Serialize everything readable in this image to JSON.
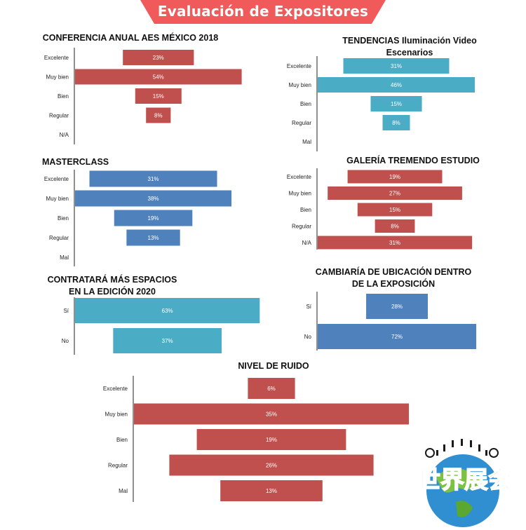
{
  "header": {
    "title": "Evaluación de Expositores",
    "color": "#f05a5b"
  },
  "logo": {
    "text": "世界展会",
    "icon": "globe-logo-icon"
  },
  "chart_data": [
    {
      "type": "bar",
      "title": "CONFERENCIA ANUAL AES  MÉXICO 2018",
      "categories": [
        "Excelente",
        "Muy bien",
        "Bien",
        "Regular",
        "N/A"
      ],
      "values": [
        23,
        54,
        15,
        8,
        0
      ],
      "labels": [
        "23%",
        "54%",
        "15%",
        "8%",
        ""
      ],
      "color": "#c0504d"
    },
    {
      "type": "bar",
      "title": "TENDENCIAS Iluminación Video\nEscenarios",
      "categories": [
        "Excelente",
        "Muy bien",
        "Bien",
        "Regular",
        "Mal"
      ],
      "values": [
        31,
        46,
        15,
        8,
        0
      ],
      "labels": [
        "31%",
        "46%",
        "15%",
        "8%",
        ""
      ],
      "color": "#4bacc6"
    },
    {
      "type": "bar",
      "title": "MASTERCLASS",
      "categories": [
        "Excelente",
        "Muy bien",
        "Bien",
        "Regular",
        "Mal"
      ],
      "values": [
        31,
        38,
        19,
        13,
        0
      ],
      "labels": [
        "31%",
        "38%",
        "19%",
        "13%",
        ""
      ],
      "color": "#4f81bd"
    },
    {
      "type": "bar",
      "title": "GALERÍA TREMENDO ESTUDIO",
      "categories": [
        "Excelente",
        "Muy bien",
        "Bien",
        "Regular",
        "N/A"
      ],
      "values": [
        19,
        27,
        15,
        8,
        31
      ],
      "labels": [
        "19%",
        "27%",
        "15%",
        "8%",
        "31%"
      ],
      "color": "#c0504d"
    },
    {
      "type": "bar",
      "title": "CONTRATARÁ MÁS ESPACIOS\nEN LA EDICIÓN 2020",
      "categories": [
        "Sí",
        "No"
      ],
      "values": [
        63,
        37
      ],
      "labels": [
        "63%",
        "37%"
      ],
      "color": "#4bacc6"
    },
    {
      "type": "bar",
      "title": "CAMBIARÍA DE UBICACIÓN DENTRO\nDE LA EXPOSICIÓN",
      "categories": [
        "Sí",
        "No"
      ],
      "values": [
        28,
        72
      ],
      "labels": [
        "28%",
        "72%"
      ],
      "color": "#4f81bd"
    },
    {
      "type": "bar",
      "title": "NIVEL DE RUIDO",
      "categories": [
        "Excelente",
        "Muy bien",
        "Bien",
        "Regular",
        "Mal"
      ],
      "values": [
        6,
        35,
        19,
        26,
        13
      ],
      "labels": [
        "6%",
        "35%",
        "19%",
        "26%",
        "13%"
      ],
      "color": "#c0504d"
    }
  ]
}
